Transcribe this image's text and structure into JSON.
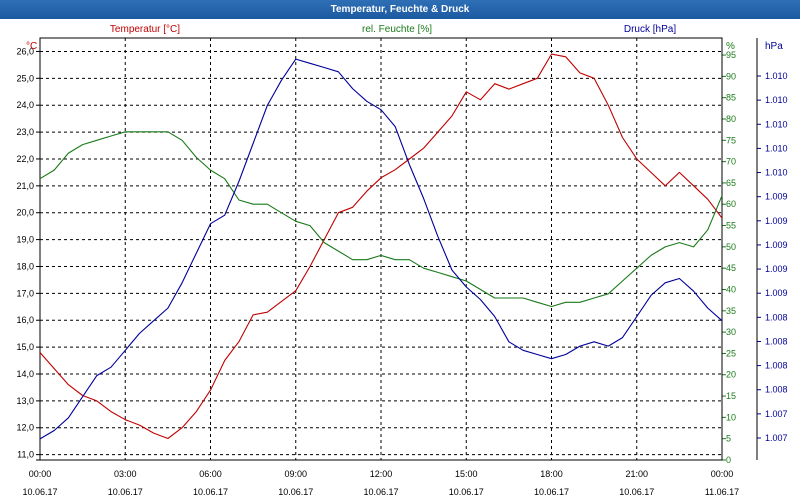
{
  "window": {
    "title": "Temperatur, Feuchte & Druck"
  },
  "colors": {
    "temperature": "#c00000",
    "humidity": "#1a7a1a",
    "pressure": "#00009a",
    "grid": "#000000",
    "background": "#ffffff"
  },
  "chart_data": {
    "type": "line",
    "title": "Temperatur, Feuchte & Druck",
    "grid": true,
    "x_ticks": [
      {
        "time": "00:00",
        "date": "10.06.17"
      },
      {
        "time": "03:00",
        "date": "10.06.17"
      },
      {
        "time": "06:00",
        "date": "10.06.17"
      },
      {
        "time": "09:00",
        "date": "10.06.17"
      },
      {
        "time": "12:00",
        "date": "10.06.17"
      },
      {
        "time": "15:00",
        "date": "10.06.17"
      },
      {
        "time": "18:00",
        "date": "10.06.17"
      },
      {
        "time": "21:00",
        "date": "10.06.17"
      },
      {
        "time": "00:00",
        "date": "11.06.17"
      }
    ],
    "xlim_hours": [
      0,
      24
    ],
    "axes": {
      "left": {
        "unit": "°C",
        "series_label": "Temperatur [°C]",
        "ylim": [
          10.8,
          26.5
        ],
        "ticks": [
          "11,0",
          "12,0",
          "13,0",
          "14,0",
          "15,0",
          "16,0",
          "17,0",
          "18,0",
          "19,0",
          "20,0",
          "21,0",
          "22,0",
          "23,0",
          "24,0",
          "25,0",
          "26,0"
        ]
      },
      "right1": {
        "unit": "%",
        "series_label": "rel. Feuchte [%]",
        "ylim": [
          0,
          99
        ],
        "ticks": [
          "0",
          "5",
          "10",
          "15",
          "20",
          "25",
          "30",
          "35",
          "40",
          "45",
          "50",
          "55",
          "60",
          "65",
          "70",
          "75",
          "80",
          "85",
          "90",
          "95"
        ]
      },
      "right2": {
        "unit": "hPa",
        "series_label": "Druck [hPa]",
        "ticks": [
          "1.007",
          "1.007",
          "1.008",
          "1.008",
          "1.008",
          "1.008",
          "1.009",
          "1.009",
          "1.009",
          "1.009",
          "1.009",
          "1.010",
          "1.010",
          "1.010",
          "1.010",
          "1.010"
        ]
      }
    },
    "series": [
      {
        "name": "Temperatur [°C]",
        "axis": "left",
        "x": [
          0,
          0.5,
          1,
          1.5,
          2,
          2.5,
          3,
          3.5,
          4,
          4.5,
          5,
          5.5,
          6,
          6.5,
          7,
          7.5,
          8,
          8.5,
          9,
          9.5,
          10,
          10.5,
          11,
          11.5,
          12,
          12.5,
          13,
          13.5,
          14,
          14.5,
          15,
          15.5,
          16,
          16.5,
          17,
          17.5,
          18,
          18.5,
          19,
          19.5,
          20,
          20.5,
          21,
          21.5,
          22,
          22.5,
          23,
          23.5,
          24
        ],
        "values": [
          14.8,
          14.2,
          13.6,
          13.2,
          13.0,
          12.6,
          12.3,
          12.1,
          11.8,
          11.6,
          12.0,
          12.6,
          13.4,
          14.5,
          15.2,
          16.2,
          16.3,
          16.7,
          17.1,
          18.0,
          19.0,
          20.0,
          20.2,
          20.8,
          21.3,
          21.6,
          22.0,
          22.4,
          23.0,
          23.6,
          24.5,
          24.2,
          24.8,
          24.6,
          24.8,
          25.0,
          25.9,
          25.8,
          25.2,
          25.0,
          24.0,
          22.8,
          22.0,
          21.5,
          21.0,
          21.5,
          21.0,
          20.5,
          19.8
        ]
      },
      {
        "name": "rel. Feuchte [%]",
        "axis": "right1",
        "x": [
          0,
          0.5,
          1,
          1.5,
          2,
          2.5,
          3,
          3.5,
          4,
          4.5,
          5,
          5.5,
          6,
          6.5,
          7,
          7.5,
          8,
          8.5,
          9,
          9.5,
          10,
          10.5,
          11,
          11.5,
          12,
          12.5,
          13,
          13.5,
          14,
          14.5,
          15,
          15.5,
          16,
          16.5,
          17,
          17.5,
          18,
          18.5,
          19,
          19.5,
          20,
          20.5,
          21,
          21.5,
          22,
          22.5,
          23,
          23.5,
          24
        ],
        "values": [
          66,
          68,
          72,
          74,
          75,
          76,
          77,
          77,
          77,
          77,
          75,
          71,
          68,
          66,
          61,
          60,
          60,
          58,
          56,
          55,
          51,
          49,
          47,
          47,
          48,
          47,
          47,
          45,
          44,
          43,
          42,
          40,
          38,
          38,
          38,
          37,
          36,
          37,
          37,
          38,
          39,
          42,
          45,
          48,
          50,
          51,
          50,
          54,
          62
        ]
      },
      {
        "name": "Druck [hPa]",
        "axis": "right2",
        "x": [
          0,
          0.5,
          1,
          1.5,
          2,
          2.5,
          3,
          3.5,
          4,
          4.5,
          5,
          5.5,
          6,
          6.5,
          7,
          7.5,
          8,
          8.5,
          9,
          9.5,
          10,
          10.5,
          11,
          11.5,
          12,
          12.5,
          13,
          13.5,
          14,
          14.5,
          15,
          15.5,
          16,
          16.5,
          17,
          17.5,
          18,
          18.5,
          19,
          19.5,
          20,
          20.5,
          21,
          21.5,
          22,
          22.5,
          23,
          23.5,
          24
        ],
        "values": [
          5,
          7,
          10,
          15,
          20,
          22,
          26,
          30,
          33,
          36,
          42,
          49,
          56,
          58,
          66,
          75,
          84,
          90,
          95,
          94,
          93,
          92,
          88,
          85,
          83,
          79,
          70,
          62,
          53,
          45,
          41,
          38,
          34,
          28,
          26,
          25,
          24,
          25,
          27,
          28,
          27,
          29,
          34,
          39,
          42,
          43,
          40,
          36,
          33
        ]
      }
    ]
  }
}
